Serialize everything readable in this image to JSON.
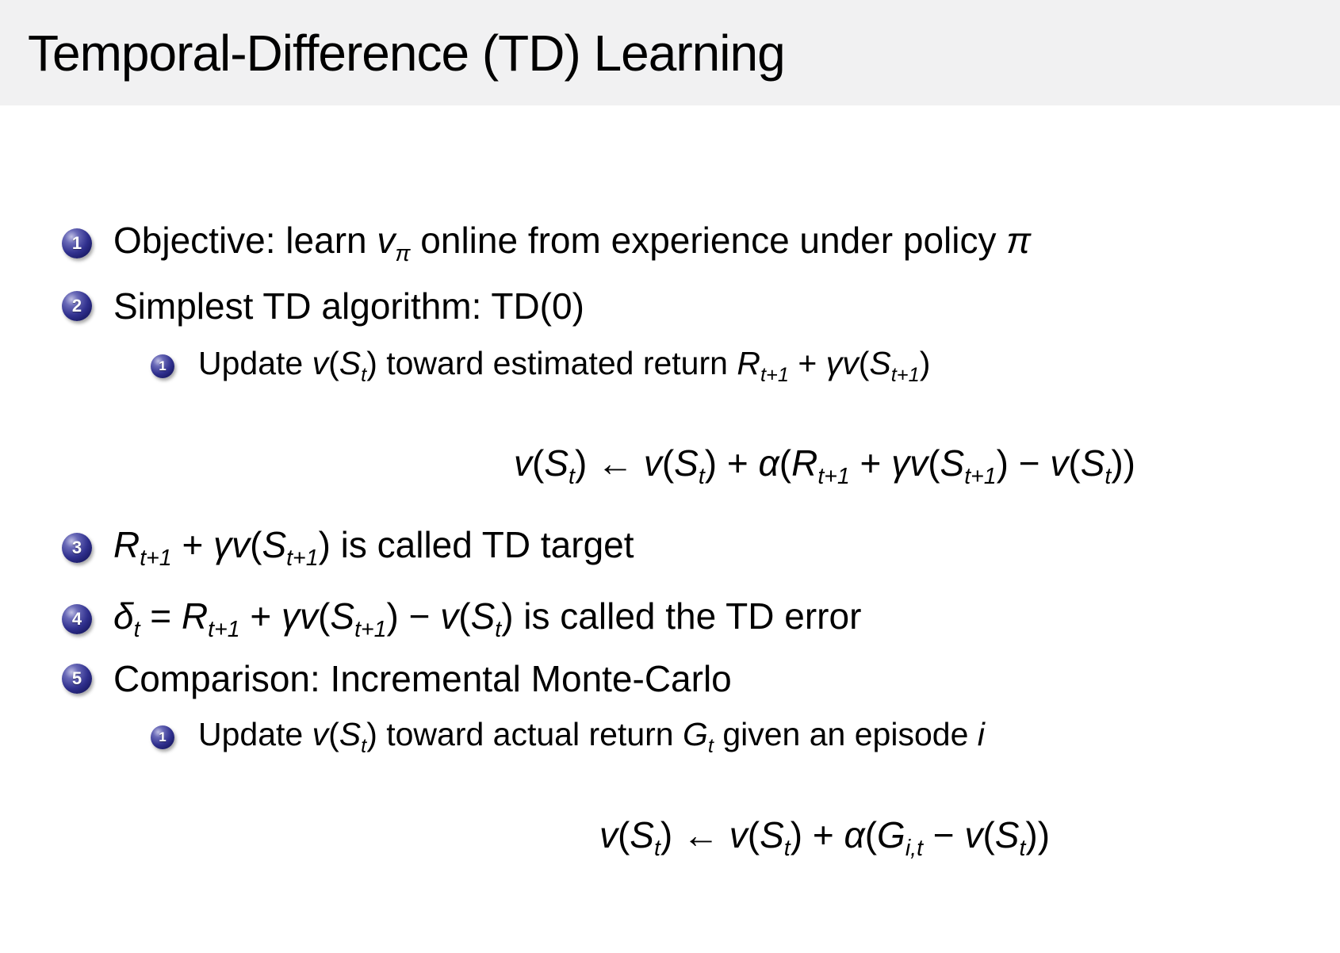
{
  "slide": {
    "title": "Temporal-Difference (TD) Learning",
    "colors": {
      "header_bg": "#f1f1f2",
      "slide_bg": "#ffffff",
      "text": "#000000",
      "bullet_ball_dark": "#17175f",
      "bullet_ball_highlight": "#c0c0e4",
      "bullet_number": "#ffffff"
    },
    "bullet_icon": "numbered-ball-icon",
    "items": [
      {
        "kind": "item",
        "number": "1",
        "segments": [
          {
            "p": "Objective: learn "
          },
          {
            "m": "v"
          },
          {
            "s": "π"
          },
          {
            "p": " online from experience under policy "
          },
          {
            "m": "π"
          }
        ]
      },
      {
        "kind": "item",
        "number": "2",
        "segments": [
          {
            "p": "Simplest TD algorithm: TD(0)"
          }
        ]
      },
      {
        "kind": "subitem",
        "number": "1",
        "segments": [
          {
            "p": "Update "
          },
          {
            "m": "v"
          },
          {
            "p": "("
          },
          {
            "m": "S"
          },
          {
            "s": "t"
          },
          {
            "p": ") toward estimated return "
          },
          {
            "m": "R"
          },
          {
            "s": "t+1"
          },
          {
            "p": " + "
          },
          {
            "m": "γv"
          },
          {
            "p": "("
          },
          {
            "m": "S"
          },
          {
            "s": "t+1"
          },
          {
            "p": ")"
          }
        ]
      },
      {
        "kind": "equation",
        "number": "",
        "segments": [
          {
            "m": "v"
          },
          {
            "p": "("
          },
          {
            "m": "S"
          },
          {
            "s": "t"
          },
          {
            "p": ") ← "
          },
          {
            "m": "v"
          },
          {
            "p": "("
          },
          {
            "m": "S"
          },
          {
            "s": "t"
          },
          {
            "p": ") + "
          },
          {
            "m": "α"
          },
          {
            "p": "("
          },
          {
            "m": "R"
          },
          {
            "s": "t+1"
          },
          {
            "p": " + "
          },
          {
            "m": "γv"
          },
          {
            "p": "("
          },
          {
            "m": "S"
          },
          {
            "s": "t+1"
          },
          {
            "p": ") − "
          },
          {
            "m": "v"
          },
          {
            "p": "("
          },
          {
            "m": "S"
          },
          {
            "s": "t"
          },
          {
            "p": "))"
          }
        ]
      },
      {
        "kind": "item",
        "number": "3",
        "segments": [
          {
            "m": "R"
          },
          {
            "s": "t+1"
          },
          {
            "p": " + "
          },
          {
            "m": "γv"
          },
          {
            "p": "("
          },
          {
            "m": "S"
          },
          {
            "s": "t+1"
          },
          {
            "p": ") is called TD target"
          }
        ]
      },
      {
        "kind": "item",
        "number": "4",
        "segments": [
          {
            "m": "δ"
          },
          {
            "s": "t"
          },
          {
            "p": " = "
          },
          {
            "m": "R"
          },
          {
            "s": "t+1"
          },
          {
            "p": " + "
          },
          {
            "m": "γv"
          },
          {
            "p": "("
          },
          {
            "m": "S"
          },
          {
            "s": "t+1"
          },
          {
            "p": ") − "
          },
          {
            "m": "v"
          },
          {
            "p": "("
          },
          {
            "m": "S"
          },
          {
            "s": "t"
          },
          {
            "p": ") is called the TD error"
          }
        ]
      },
      {
        "kind": "item",
        "number": "5",
        "segments": [
          {
            "p": "Comparison: Incremental Monte-Carlo"
          }
        ]
      },
      {
        "kind": "subitem",
        "number": "1",
        "segments": [
          {
            "p": "Update "
          },
          {
            "m": "v"
          },
          {
            "p": "("
          },
          {
            "m": "S"
          },
          {
            "s": "t"
          },
          {
            "p": ") toward actual return "
          },
          {
            "m": "G"
          },
          {
            "s": "t"
          },
          {
            "p": " given an episode "
          },
          {
            "m": "i"
          }
        ]
      },
      {
        "kind": "equation",
        "number": "",
        "segments": [
          {
            "m": "v"
          },
          {
            "p": "("
          },
          {
            "m": "S"
          },
          {
            "s": "t"
          },
          {
            "p": ") ← "
          },
          {
            "m": "v"
          },
          {
            "p": "("
          },
          {
            "m": "S"
          },
          {
            "s": "t"
          },
          {
            "p": ") + "
          },
          {
            "m": "α"
          },
          {
            "p": "("
          },
          {
            "m": "G"
          },
          {
            "s": "i,t"
          },
          {
            "p": " − "
          },
          {
            "m": "v"
          },
          {
            "p": "("
          },
          {
            "m": "S"
          },
          {
            "s": "t"
          },
          {
            "p": "))"
          }
        ]
      }
    ]
  }
}
